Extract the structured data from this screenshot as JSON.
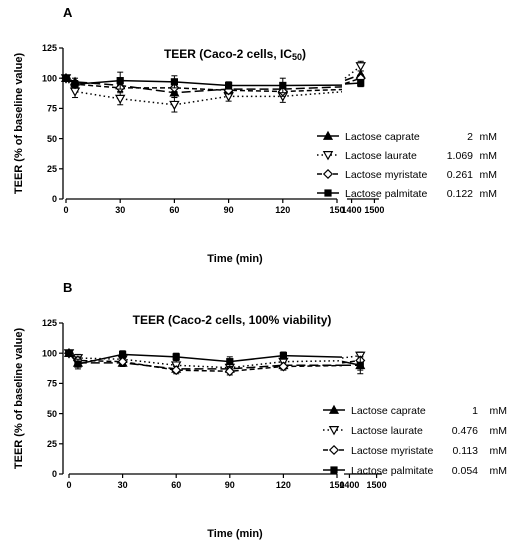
{
  "chart_data": [
    {
      "type": "line",
      "panel": "A",
      "title": "TEER (Caco-2 cells, IC",
      "title_sub": "50",
      "title_close": ")",
      "xlabel": "Time (min)",
      "ylabel": "TEER (% of baseline value)",
      "ylim": [
        0,
        125
      ],
      "yticks": [
        0,
        25,
        50,
        75,
        100,
        125
      ],
      "x_main_ticks": [
        0,
        30,
        60,
        90,
        120,
        150
      ],
      "x_late_ticks": [
        1400,
        1500
      ],
      "x": [
        0,
        5,
        30,
        60,
        90,
        120,
        1440
      ],
      "legend_position": "right",
      "series": [
        {
          "name": "Lactose caprate",
          "conc": "2",
          "unit": "mM",
          "marker": "triangle-up",
          "dash": "long-dash",
          "values": [
            100,
            97,
            94,
            88,
            91,
            91,
            103
          ],
          "errors": [
            0,
            3,
            3,
            4,
            3,
            4,
            3
          ]
        },
        {
          "name": "Lactose laurate",
          "conc": "1.069",
          "unit": "mM",
          "marker": "triangle-down-open",
          "dash": "dotted",
          "values": [
            100,
            89,
            83,
            78,
            85,
            85,
            110
          ],
          "errors": [
            0,
            5,
            5,
            6,
            4,
            5,
            4
          ]
        },
        {
          "name": "Lactose myristate",
          "conc": "0.261",
          "unit": "mM",
          "marker": "diamond-open",
          "dash": "dashed",
          "values": [
            100,
            95,
            92,
            92,
            90,
            89,
            100
          ],
          "errors": [
            0,
            3,
            3,
            3,
            3,
            4,
            3
          ]
        },
        {
          "name": "Lactose palmitate",
          "conc": "0.122",
          "unit": "mM",
          "marker": "square",
          "dash": "solid",
          "values": [
            100,
            95,
            98,
            97,
            94,
            94,
            96
          ],
          "errors": [
            0,
            3,
            7,
            5,
            3,
            6,
            3
          ]
        }
      ]
    },
    {
      "type": "line",
      "panel": "B",
      "title": "TEER (Caco-2 cells, 100% viability)",
      "xlabel": "Time (min)",
      "ylabel": "TEER (% of baseline value)",
      "ylim": [
        0,
        125
      ],
      "yticks": [
        0,
        25,
        50,
        75,
        100,
        125
      ],
      "x_main_ticks": [
        0,
        30,
        60,
        90,
        120,
        150
      ],
      "x_late_ticks": [
        1400,
        1500
      ],
      "x": [
        0,
        5,
        30,
        60,
        90,
        120,
        1440
      ],
      "legend_position": "right",
      "series": [
        {
          "name": "Lactose caprate",
          "conc": "1",
          "unit": "mM",
          "marker": "triangle-up",
          "dash": "long-dash",
          "values": [
            100,
            92,
            92,
            87,
            87,
            90,
            90
          ],
          "errors": [
            0,
            3,
            3,
            3,
            3,
            3,
            4
          ]
        },
        {
          "name": "Lactose laurate",
          "conc": "0.476",
          "unit": "mM",
          "marker": "triangle-down-open",
          "dash": "dotted",
          "values": [
            100,
            96,
            95,
            90,
            88,
            93,
            98
          ],
          "errors": [
            0,
            3,
            3,
            4,
            3,
            3,
            3
          ]
        },
        {
          "name": "Lactose myristate",
          "conc": "0.113",
          "unit": "mM",
          "marker": "diamond-open",
          "dash": "dashed",
          "values": [
            100,
            94,
            93,
            86,
            85,
            89,
            94
          ],
          "errors": [
            0,
            3,
            3,
            3,
            3,
            3,
            3
          ]
        },
        {
          "name": "Lactose palmitate",
          "conc": "0.054",
          "unit": "mM",
          "marker": "square",
          "dash": "solid",
          "values": [
            100,
            91,
            99,
            97,
            93,
            98,
            90
          ],
          "errors": [
            0,
            4,
            3,
            3,
            4,
            3,
            7
          ]
        }
      ]
    }
  ]
}
